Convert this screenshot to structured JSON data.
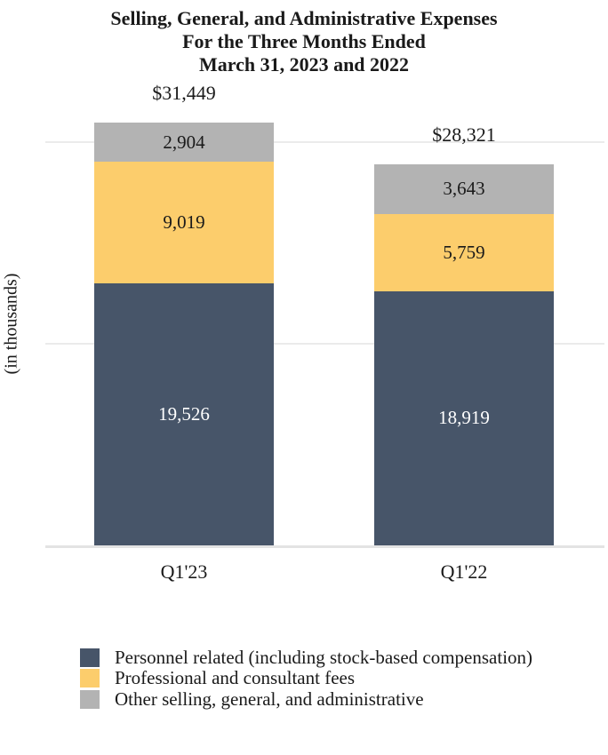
{
  "title": {
    "line1": "Selling, General, and Administrative Expenses",
    "line2": "For the Three Months Ended",
    "line3": "March 31, 2023 and 2022"
  },
  "y_axis_label": "(in thousands)",
  "colors": {
    "personnel": "#475569",
    "professional": "#FCCD6C",
    "other": "#B3B3B3",
    "gridline": "#EBEBEB",
    "axis_line": "#E3E3E3"
  },
  "chart_data": {
    "type": "bar",
    "stacked": true,
    "categories": [
      "Q1'23",
      "Q1'22"
    ],
    "series": [
      {
        "name": "Personnel related (including stock-based compensation)",
        "color_key": "personnel",
        "text_color": "#FFFFFF",
        "values": [
          19526,
          18919
        ]
      },
      {
        "name": "Professional and consultant fees",
        "color_key": "professional",
        "text_color": "#1A1A1A",
        "values": [
          9019,
          5759
        ]
      },
      {
        "name": "Other selling, general, and administrative",
        "color_key": "other",
        "text_color": "#1A1A1A",
        "values": [
          2904,
          3643
        ]
      }
    ],
    "total_values": [
      31449,
      28321
    ],
    "total_prefix": "$",
    "ylim": [
      0,
      34000
    ],
    "gridline_values": [
      0,
      15000,
      30000
    ],
    "grid": true,
    "legend_position": "bottom-left",
    "xlabel": "",
    "ylabel": "(in thousands)"
  },
  "legend": {
    "items": [
      {
        "label": "Personnel related (including stock-based compensation)",
        "color_key": "personnel"
      },
      {
        "label": "Professional and consultant fees",
        "color_key": "professional"
      },
      {
        "label": "Other selling, general, and administrative",
        "color_key": "other"
      }
    ]
  }
}
